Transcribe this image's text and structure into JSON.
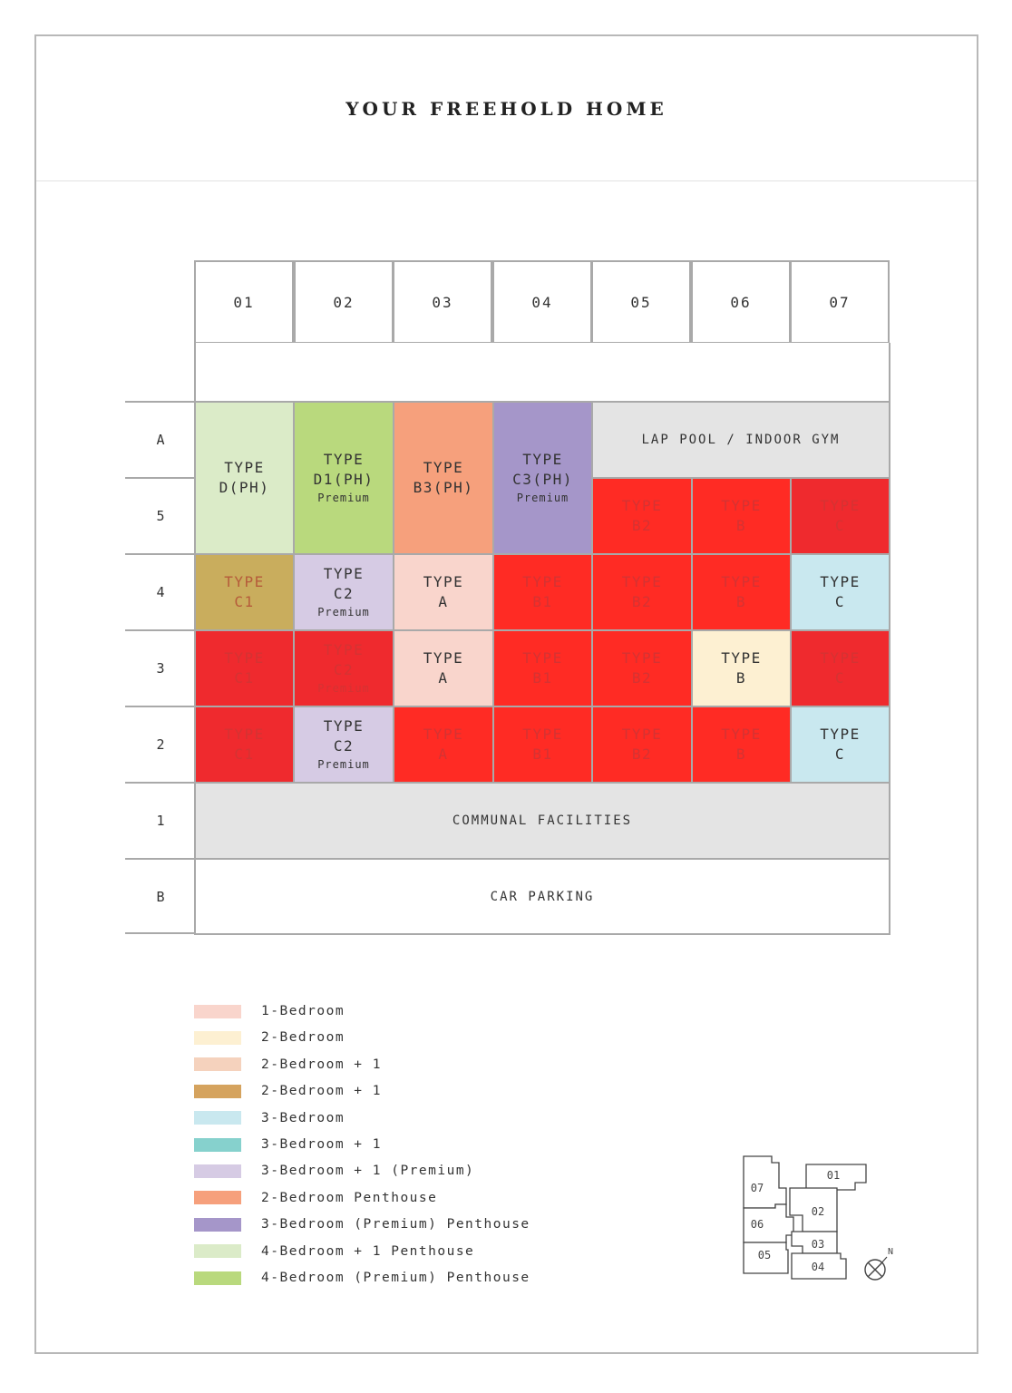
{
  "title": "YOUR FREEHOLD HOME",
  "columns": [
    "01",
    "02",
    "03",
    "04",
    "05",
    "06",
    "07"
  ],
  "rows": [
    "A",
    "5",
    "4",
    "3",
    "2",
    "1",
    "B"
  ],
  "units": {
    "A5_01": {
      "label": "TYPE",
      "type": "D(PH)",
      "sub": ""
    },
    "A5_02": {
      "label": "TYPE",
      "type": "D1(PH)",
      "sub": "Premium"
    },
    "A5_03": {
      "label": "TYPE",
      "type": "B3(PH)",
      "sub": ""
    },
    "A5_04": {
      "label": "TYPE",
      "type": "C3(PH)",
      "sub": "Premium"
    },
    "r5_05": {
      "label": "TYPE",
      "type": "B2",
      "sub": ""
    },
    "r5_06": {
      "label": "TYPE",
      "type": "B",
      "sub": ""
    },
    "r5_07": {
      "label": "TYPE",
      "type": "C",
      "sub": ""
    },
    "r4_01": {
      "label": "TYPE",
      "type": "C1",
      "sub": ""
    },
    "r4_02": {
      "label": "TYPE",
      "type": "C2",
      "sub": "Premium"
    },
    "r4_03": {
      "label": "TYPE",
      "type": "A",
      "sub": ""
    },
    "r4_04": {
      "label": "TYPE",
      "type": "B1",
      "sub": ""
    },
    "r4_05": {
      "label": "TYPE",
      "type": "B2",
      "sub": ""
    },
    "r4_06": {
      "label": "TYPE",
      "type": "B",
      "sub": ""
    },
    "r4_07": {
      "label": "TYPE",
      "type": "C",
      "sub": ""
    },
    "r3_01": {
      "label": "TYPE",
      "type": "C1",
      "sub": ""
    },
    "r3_02": {
      "label": "TYPE",
      "type": "C2",
      "sub": "Premium"
    },
    "r3_03": {
      "label": "TYPE",
      "type": "A",
      "sub": ""
    },
    "r3_04": {
      "label": "TYPE",
      "type": "B1",
      "sub": ""
    },
    "r3_05": {
      "label": "TYPE",
      "type": "B2",
      "sub": ""
    },
    "r3_06": {
      "label": "TYPE",
      "type": "B",
      "sub": ""
    },
    "r3_07": {
      "label": "TYPE",
      "type": "C",
      "sub": ""
    },
    "r2_01": {
      "label": "TYPE",
      "type": "C1",
      "sub": ""
    },
    "r2_02": {
      "label": "TYPE",
      "type": "C2",
      "sub": "Premium"
    },
    "r2_03": {
      "label": "TYPE",
      "type": "A",
      "sub": ""
    },
    "r2_04": {
      "label": "TYPE",
      "type": "B1",
      "sub": ""
    },
    "r2_05": {
      "label": "TYPE",
      "type": "B2",
      "sub": ""
    },
    "r2_06": {
      "label": "TYPE",
      "type": "B",
      "sub": ""
    },
    "r2_07": {
      "label": "TYPE",
      "type": "C",
      "sub": ""
    }
  },
  "facilities": {
    "lap_pool": "LAP POOL / INDOOR GYM",
    "communal": "COMMUNAL FACILITIES",
    "car_parking": "CAR PARKING"
  },
  "colors": {
    "red": "#ff2b24",
    "red_dark": "#ef2a2e",
    "grey": "#e4e4e4",
    "one_bed": "#f9d5cc",
    "two_bed": "#fdf0d2",
    "two_bed_plus_one_a": "#f5d2bd",
    "two_bed_plus_one_b": "#d5a35e",
    "three_bed": "#c9e8ef",
    "three_bed_plus_one": "#86d1cd",
    "three_bed_plus_one_premium": "#d6cbe4",
    "two_bed_ph": "#f6a07c",
    "three_bed_premium_ph": "#a596c9",
    "four_bed_plus_one_ph": "#dbebc8",
    "four_bed_premium_ph": "#b9d97d",
    "olive": "#c9ad5d"
  },
  "legend": [
    {
      "label": "1-Bedroom",
      "color": "#f9d5cc"
    },
    {
      "label": "2-Bedroom",
      "color": "#fdf0d2"
    },
    {
      "label": "2-Bedroom + 1",
      "color": "#f5d2bd"
    },
    {
      "label": "2-Bedroom + 1",
      "color": "#d5a35e"
    },
    {
      "label": "3-Bedroom",
      "color": "#c9e8ef"
    },
    {
      "label": "3-Bedroom + 1",
      "color": "#86d1cd"
    },
    {
      "label": "3-Bedroom + 1 (Premium)",
      "color": "#d6cbe4"
    },
    {
      "label": "2-Bedroom Penthouse",
      "color": "#f6a07c"
    },
    {
      "label": "3-Bedroom (Premium) Penthouse",
      "color": "#a596c9"
    },
    {
      "label": "4-Bedroom + 1 Penthouse",
      "color": "#dbebc8"
    },
    {
      "label": "4-Bedroom (Premium) Penthouse",
      "color": "#b9d97d"
    }
  ],
  "keyplan": {
    "units": [
      "07",
      "01",
      "02",
      "06",
      "03",
      "05",
      "04"
    ],
    "north": "N"
  }
}
